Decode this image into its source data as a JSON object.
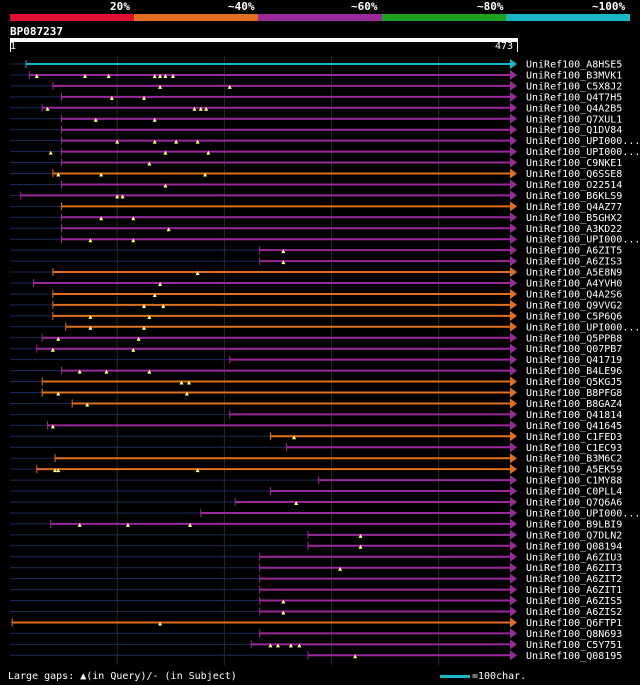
{
  "legend": {
    "labels": [
      "20%",
      "~40%",
      "~60%",
      "~80%",
      "~100%"
    ],
    "colors": [
      "#e01030",
      "#e07020",
      "#9a2a9a",
      "#20a020",
      "#19b8c4"
    ]
  },
  "query": {
    "id": "BP087237",
    "start_label": "1",
    "end_label": "473"
  },
  "footer": {
    "gaps_text": "Large gaps: ▲(in Query)/- (in Subject)",
    "scale_text": "=100char."
  },
  "hits": [
    {
      "name": "UniRef100_A8HSE5",
      "color": "cyan",
      "start": 15,
      "gaps": []
    },
    {
      "name": "UniRef100_B3MVK1",
      "color": "purple",
      "start": 18,
      "gaps": [
        25,
        70,
        92,
        135,
        140,
        145,
        152
      ]
    },
    {
      "name": "UniRef100_C5X8J2",
      "color": "purple",
      "start": 40,
      "gaps": [
        140,
        205
      ]
    },
    {
      "name": "UniRef100_Q4T7H5",
      "color": "purple",
      "start": 48,
      "gaps": [
        95,
        125
      ]
    },
    {
      "name": "UniRef100_Q4A2B5",
      "color": "purple",
      "start": 30,
      "gaps": [
        35,
        172,
        178,
        183
      ]
    },
    {
      "name": "UniRef100_Q7XUL1",
      "color": "purple",
      "start": 48,
      "gaps": [
        80,
        135
      ]
    },
    {
      "name": "UniRef100_Q1DV84",
      "color": "purple",
      "start": 48,
      "gaps": []
    },
    {
      "name": "UniRef100_UPI000...",
      "color": "purple",
      "start": 48,
      "gaps": [
        100,
        135,
        155,
        175
      ]
    },
    {
      "name": "UniRef100_UPI000...",
      "color": "purple",
      "start": 48,
      "gaps": [
        38,
        145,
        185
      ]
    },
    {
      "name": "UniRef100_C9NKE1",
      "color": "purple",
      "start": 48,
      "gaps": [
        130
      ]
    },
    {
      "name": "UniRef100_Q6SSE8",
      "color": "orange",
      "start": 40,
      "gaps": [
        45,
        85,
        182
      ]
    },
    {
      "name": "UniRef100_O22514",
      "color": "purple",
      "start": 48,
      "gaps": [
        145
      ]
    },
    {
      "name": "UniRef100_B6KLS9",
      "color": "purple",
      "start": 10,
      "gaps": [
        100,
        105
      ]
    },
    {
      "name": "UniRef100_Q4AZ77",
      "color": "orange",
      "start": 48,
      "gaps": []
    },
    {
      "name": "UniRef100_B5GHX2",
      "color": "purple",
      "start": 48,
      "gaps": [
        85,
        115
      ]
    },
    {
      "name": "UniRef100_A3KD22",
      "color": "purple",
      "start": 48,
      "gaps": [
        148
      ]
    },
    {
      "name": "UniRef100_UPI000...",
      "color": "purple",
      "start": 48,
      "gaps": [
        75,
        115
      ]
    },
    {
      "name": "UniRef100_A6ZIT5",
      "color": "purple",
      "start": 233,
      "gaps": [
        255
      ]
    },
    {
      "name": "UniRef100_A6ZIS3",
      "color": "purple",
      "start": 233,
      "gaps": [
        255
      ]
    },
    {
      "name": "UniRef100_A5E8N9",
      "color": "orange",
      "start": 40,
      "gaps": [
        175
      ]
    },
    {
      "name": "UniRef100_A4YVH0",
      "color": "purple",
      "start": 22,
      "gaps": [
        140
      ]
    },
    {
      "name": "UniRef100_Q4A2S6",
      "color": "orange",
      "start": 40,
      "gaps": [
        135
      ]
    },
    {
      "name": "UniRef100_Q9VVG2",
      "color": "orange",
      "start": 40,
      "gaps": [
        125,
        143
      ]
    },
    {
      "name": "UniRef100_C5P6Q6",
      "color": "orange",
      "start": 40,
      "gaps": [
        75,
        130
      ]
    },
    {
      "name": "UniRef100_UPI000...",
      "color": "orange",
      "start": 52,
      "gaps": [
        75,
        125
      ]
    },
    {
      "name": "UniRef100_Q5PPB8",
      "color": "purple",
      "start": 30,
      "gaps": [
        45,
        120
      ]
    },
    {
      "name": "UniRef100_Q07PB7",
      "color": "purple",
      "start": 25,
      "gaps": [
        40,
        115
      ]
    },
    {
      "name": "UniRef100_Q41719",
      "color": "purple",
      "start": 205,
      "gaps": []
    },
    {
      "name": "UniRef100_B4LE96",
      "color": "purple",
      "start": 48,
      "gaps": [
        65,
        90,
        130
      ]
    },
    {
      "name": "UniRef100_Q5KGJ5",
      "color": "orange",
      "start": 30,
      "gaps": [
        160,
        167
      ]
    },
    {
      "name": "UniRef100_B8PFG8",
      "color": "orange",
      "start": 30,
      "gaps": [
        45,
        165
      ]
    },
    {
      "name": "UniRef100_B8GAZ4",
      "color": "orange",
      "start": 58,
      "gaps": [
        72
      ]
    },
    {
      "name": "UniRef100_Q41814",
      "color": "purple",
      "start": 205,
      "gaps": []
    },
    {
      "name": "UniRef100_Q41645",
      "color": "purple",
      "start": 35,
      "gaps": [
        40
      ]
    },
    {
      "name": "UniRef100_C1FED3",
      "color": "orange",
      "start": 243,
      "gaps": [
        265
      ]
    },
    {
      "name": "UniRef100_C1EC93",
      "color": "purple",
      "start": 258,
      "gaps": []
    },
    {
      "name": "UniRef100_B3M6C2",
      "color": "orange",
      "start": 42,
      "gaps": []
    },
    {
      "name": "UniRef100_A5EK59",
      "color": "orange",
      "start": 25,
      "gaps": [
        42,
        45,
        175
      ]
    },
    {
      "name": "UniRef100_C1MY88",
      "color": "purple",
      "start": 288,
      "gaps": []
    },
    {
      "name": "UniRef100_C0PLL4",
      "color": "purple",
      "start": 243,
      "gaps": []
    },
    {
      "name": "UniRef100_Q7Q6A6",
      "color": "purple",
      "start": 210,
      "gaps": [
        267
      ]
    },
    {
      "name": "UniRef100_UPI000...",
      "color": "purple",
      "start": 178,
      "gaps": []
    },
    {
      "name": "UniRef100_B9LBI9",
      "color": "purple",
      "start": 38,
      "gaps": [
        65,
        110,
        168
      ]
    },
    {
      "name": "UniRef100_Q7DLN2",
      "color": "purple",
      "start": 278,
      "gaps": [
        327
      ]
    },
    {
      "name": "UniRef100_Q08194",
      "color": "purple",
      "start": 278,
      "gaps": [
        327
      ]
    },
    {
      "name": "UniRef100_A6ZIU3",
      "color": "purple",
      "start": 233,
      "gaps": []
    },
    {
      "name": "UniRef100_A6ZIT3",
      "color": "purple",
      "start": 233,
      "gaps": [
        308
      ]
    },
    {
      "name": "UniRef100_A6ZIT2",
      "color": "purple",
      "start": 233,
      "gaps": []
    },
    {
      "name": "UniRef100_A6ZIT1",
      "color": "purple",
      "start": 233,
      "gaps": []
    },
    {
      "name": "UniRef100_A6ZIS5",
      "color": "purple",
      "start": 233,
      "gaps": [
        255
      ]
    },
    {
      "name": "UniRef100_A6ZIS2",
      "color": "purple",
      "start": 233,
      "gaps": [
        255
      ]
    },
    {
      "name": "UniRef100_Q6FTP1",
      "color": "orange",
      "start": 2,
      "gaps": [
        140
      ]
    },
    {
      "name": "UniRef100_Q8N693",
      "color": "purple",
      "start": 233,
      "gaps": []
    },
    {
      "name": "UniRef100_C5Y751",
      "color": "purple",
      "start": 225,
      "gaps": [
        243,
        250,
        262,
        270
      ]
    },
    {
      "name": "UniRef100_Q08195",
      "color": "purple",
      "start": 278,
      "gaps": [
        322
      ]
    }
  ]
}
